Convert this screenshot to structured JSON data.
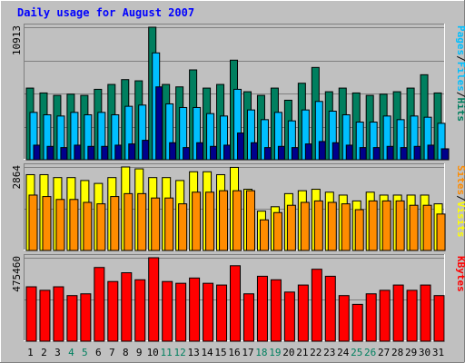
{
  "title": "Daily usage for August 2007",
  "colors": {
    "background": "#c0c0c0",
    "plot_bg": "#c0c0c0",
    "title": "#0000ff",
    "hits": "#007f5f",
    "files": "#00bfff",
    "pages": "#00008b",
    "visits": "#ffff00",
    "sites": "#ff8c00",
    "kbytes": "#ff0000",
    "label_dark": "#000000",
    "label_weekend": "#00805f"
  },
  "chart_data": {
    "type": "bar",
    "title": "Daily usage for August 2007",
    "days": [
      "1",
      "2",
      "3",
      "4",
      "5",
      "6",
      "7",
      "8",
      "9",
      "10",
      "11",
      "12",
      "13",
      "14",
      "15",
      "16",
      "17",
      "18",
      "19",
      "20",
      "21",
      "22",
      "23",
      "24",
      "25",
      "26",
      "27",
      "28",
      "29",
      "30",
      "31"
    ],
    "weekend_days": [
      "4",
      "5",
      "11",
      "12",
      "18",
      "19",
      "25",
      "26"
    ],
    "panels": [
      {
        "name": "hits-files-pages",
        "ymax_label": "10913",
        "ymax": 10913,
        "legend": [
          "Pages",
          "/",
          "Files",
          "/",
          "Hits"
        ],
        "legend_colors": [
          "#00bfff",
          "#000000",
          "#00bfff",
          "#000000",
          "#007f5f"
        ],
        "series": [
          {
            "name": "Hits",
            "values": [
              5900,
              5500,
              5300,
              5400,
              5300,
              5800,
              6200,
              6600,
              6500,
              10913,
              6200,
              6000,
              7400,
              5900,
              6200,
              8200,
              5600,
              5300,
              5900,
              4900,
              6300,
              7600,
              5600,
              5900,
              5500,
              5300,
              5400,
              5600,
              5900,
              7000,
              5500
            ]
          },
          {
            "name": "Files",
            "values": [
              3900,
              3700,
              3600,
              3900,
              3700,
              3900,
              3700,
              4400,
              4500,
              8800,
              4600,
              4300,
              4300,
              3800,
              3600,
              5800,
              4100,
              3300,
              3900,
              3200,
              4100,
              4800,
              4000,
              3700,
              3100,
              3100,
              3600,
              3300,
              3600,
              3500,
              3000
            ]
          },
          {
            "name": "Pages",
            "values": [
              1200,
              1100,
              1000,
              1200,
              1100,
              1100,
              1200,
              1300,
              1600,
              6000,
              1400,
              1000,
              1400,
              1100,
              1200,
              2200,
              1400,
              1000,
              1100,
              1000,
              1300,
              1500,
              1400,
              1200,
              1000,
              1000,
              1100,
              1000,
              1100,
              1200,
              900
            ]
          }
        ]
      },
      {
        "name": "visits-sites",
        "ymax_label": "2864",
        "ymax": 2864,
        "legend": [
          "Sites",
          "/",
          "Visits"
        ],
        "legend_colors": [
          "#ff8c00",
          "#000000",
          "#ffff00"
        ],
        "series": [
          {
            "name": "Visits",
            "values": [
              2600,
              2600,
              2500,
              2500,
              2400,
              2300,
              2500,
              2864,
              2800,
              2500,
              2500,
              2400,
              2700,
              2700,
              2600,
              2850,
              2100,
              1350,
              1500,
              1950,
              2050,
              2100,
              2000,
              1900,
              1700,
              2000,
              1900,
              1900,
              1900,
              1900,
              1600
            ]
          },
          {
            "name": "Sites",
            "values": [
              1900,
              1850,
              1750,
              1750,
              1650,
              1600,
              1850,
              1950,
              1950,
              1800,
              1800,
              1600,
              2000,
              2000,
              2050,
              2050,
              2050,
              1050,
              1300,
              1550,
              1650,
              1700,
              1650,
              1600,
              1400,
              1700,
              1700,
              1700,
              1550,
              1550,
              1250
            ]
          }
        ]
      },
      {
        "name": "kbytes",
        "ymax_label": "475460",
        "ymax": 475460,
        "legend": [
          "KBytes"
        ],
        "legend_colors": [
          "#ff0000"
        ],
        "series": [
          {
            "name": "KBytes",
            "values": [
              310000,
              290000,
              310000,
              260000,
              270000,
              420000,
              340000,
              390000,
              350000,
              475460,
              340000,
              330000,
              360000,
              330000,
              320000,
              430000,
              270000,
              370000,
              350000,
              280000,
              320000,
              410000,
              370000,
              260000,
              210000,
              270000,
              290000,
              320000,
              290000,
              320000,
              260000
            ]
          }
        ]
      }
    ]
  }
}
